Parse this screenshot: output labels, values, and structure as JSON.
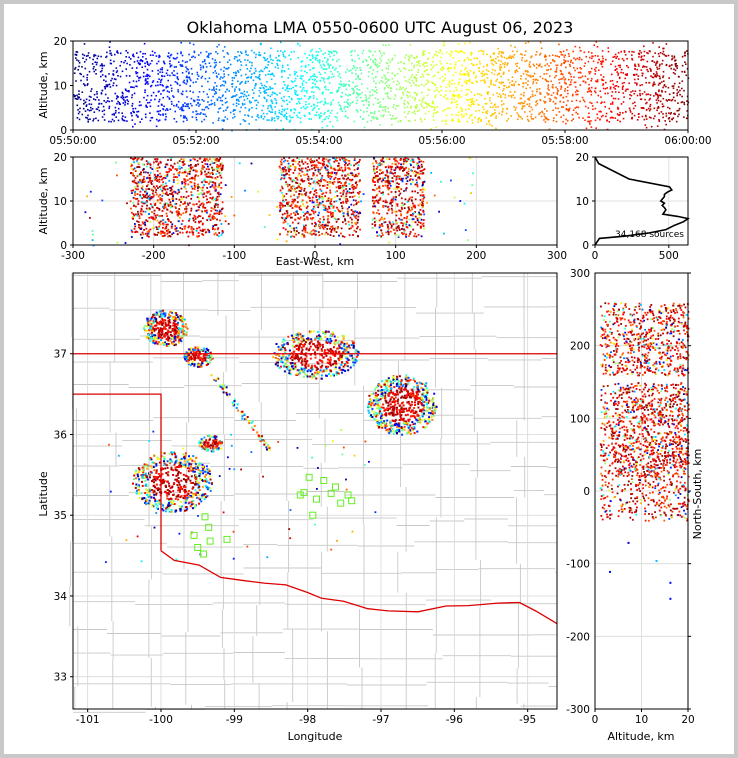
{
  "title": "Oklahoma LMA 0550-0600 UTC August 06, 2023",
  "colors": {
    "state_border": "#dd0000",
    "county_lines": "#c8c8c8",
    "station_marker": "#66ee22",
    "histogram_line": "#000000",
    "colormap": "jet (time-coded)"
  },
  "chart_data": [
    {
      "id": "time_height",
      "type": "scatter",
      "ylabel": "Altitude, km",
      "ylim": [
        0,
        20
      ],
      "yticks": [
        "0",
        "10",
        "20"
      ],
      "xlim": [
        "05:50:00",
        "06:00:00"
      ],
      "xticks": [
        "05:50:00",
        "05:52:00",
        "05:54:00",
        "05:56:00",
        "05:58:00",
        "06:00:00"
      ],
      "color_by": "time"
    },
    {
      "id": "ew_height",
      "type": "scatter",
      "xlabel": "East-West, km",
      "ylabel": "Altitude, km",
      "xlim": [
        -300,
        300
      ],
      "xticks": [
        "-300",
        "-200",
        "-100",
        "0",
        "100",
        "200",
        "300"
      ],
      "ylim": [
        0,
        20
      ],
      "yticks": [
        "0",
        "10",
        "20"
      ],
      "clusters": [
        {
          "x_range": [
            -230,
            -115
          ],
          "z_range": [
            2,
            20
          ],
          "density": "high"
        },
        {
          "x_range": [
            -45,
            55
          ],
          "z_range": [
            2,
            20
          ],
          "density": "high"
        },
        {
          "x_range": [
            70,
            135
          ],
          "z_range": [
            2,
            20
          ],
          "density": "high"
        },
        {
          "x_range": [
            -290,
            200
          ],
          "z_range": [
            0,
            20
          ],
          "density": "sparse"
        }
      ]
    },
    {
      "id": "altitude_histogram",
      "type": "line",
      "xlim": [
        0,
        630
      ],
      "xticks": [
        "0",
        "500"
      ],
      "ylim": [
        0,
        20
      ],
      "yticks": [
        "0",
        "10",
        "20"
      ],
      "annotation": "34,168 sources",
      "x": [
        0,
        30,
        200,
        360,
        480,
        540,
        600,
        630,
        560,
        460,
        470,
        480,
        470,
        455,
        470,
        445,
        470,
        470,
        490,
        520,
        505,
        230,
        25,
        0
      ],
      "y": [
        0,
        1.5,
        2.0,
        2.7,
        3.5,
        4.5,
        5.3,
        6.0,
        6.5,
        7.0,
        7.5,
        8.0,
        8.5,
        9.0,
        9.5,
        10.0,
        11.0,
        11.5,
        12.0,
        12.5,
        13.2,
        15.0,
        18.5,
        20
      ]
    },
    {
      "id": "plan_view",
      "type": "scatter",
      "xlabel": "Longitude",
      "ylabel": "Latitude",
      "xlim": [
        -101.2,
        -94.6
      ],
      "xticks": [
        "-101",
        "-100",
        "-99",
        "-98",
        "-97",
        "-96",
        "-95"
      ],
      "ylim": [
        32.6,
        38.0
      ],
      "yticks": [
        "33",
        "34",
        "35",
        "36",
        "37"
      ],
      "clusters": [
        {
          "lon": [
            -100.25,
            -99.65
          ],
          "lat": [
            37.1,
            37.55
          ],
          "density": "high"
        },
        {
          "lon": [
            -99.7,
            -99.3
          ],
          "lat": [
            36.85,
            37.1
          ],
          "density": "high"
        },
        {
          "lon": [
            -98.5,
            -97.3
          ],
          "lat": [
            36.7,
            37.3
          ],
          "density": "high"
        },
        {
          "lon": [
            -97.2,
            -96.25
          ],
          "lat": [
            36.0,
            36.75
          ],
          "density": "high"
        },
        {
          "lon": [
            -100.4,
            -99.3
          ],
          "lat": [
            35.05,
            35.8
          ],
          "density": "high"
        },
        {
          "lon": [
            -99.5,
            -99.15
          ],
          "lat": [
            35.8,
            36.0
          ],
          "density": "high"
        }
      ],
      "stations": [
        {
          "lon": -97.98,
          "lat": 35.47
        },
        {
          "lon": -97.78,
          "lat": 35.43
        },
        {
          "lon": -97.62,
          "lat": 35.35
        },
        {
          "lon": -97.45,
          "lat": 35.25
        },
        {
          "lon": -97.55,
          "lat": 35.15
        },
        {
          "lon": -97.68,
          "lat": 35.27
        },
        {
          "lon": -98.05,
          "lat": 35.28
        },
        {
          "lon": -97.93,
          "lat": 35.0
        },
        {
          "lon": -97.88,
          "lat": 35.2
        },
        {
          "lon": -97.4,
          "lat": 35.18
        },
        {
          "lon": -98.1,
          "lat": 35.25
        },
        {
          "lon": -99.4,
          "lat": 34.98
        },
        {
          "lon": -99.35,
          "lat": 34.85
        },
        {
          "lon": -99.55,
          "lat": 34.75
        },
        {
          "lon": -99.33,
          "lat": 34.68
        },
        {
          "lon": -99.1,
          "lat": 34.7
        },
        {
          "lon": -99.5,
          "lat": 34.6
        },
        {
          "lon": -99.42,
          "lat": 34.52
        }
      ]
    },
    {
      "id": "ns_height",
      "type": "scatter",
      "xlabel": "Altitude, km",
      "ylabel": "North-South, km",
      "xlim": [
        0,
        20
      ],
      "xticks": [
        "0",
        "10",
        "20"
      ],
      "ylim": [
        -300,
        300
      ],
      "yticks": [
        "-300",
        "-200",
        "-100",
        "0",
        "100",
        "200",
        "300"
      ]
    }
  ]
}
